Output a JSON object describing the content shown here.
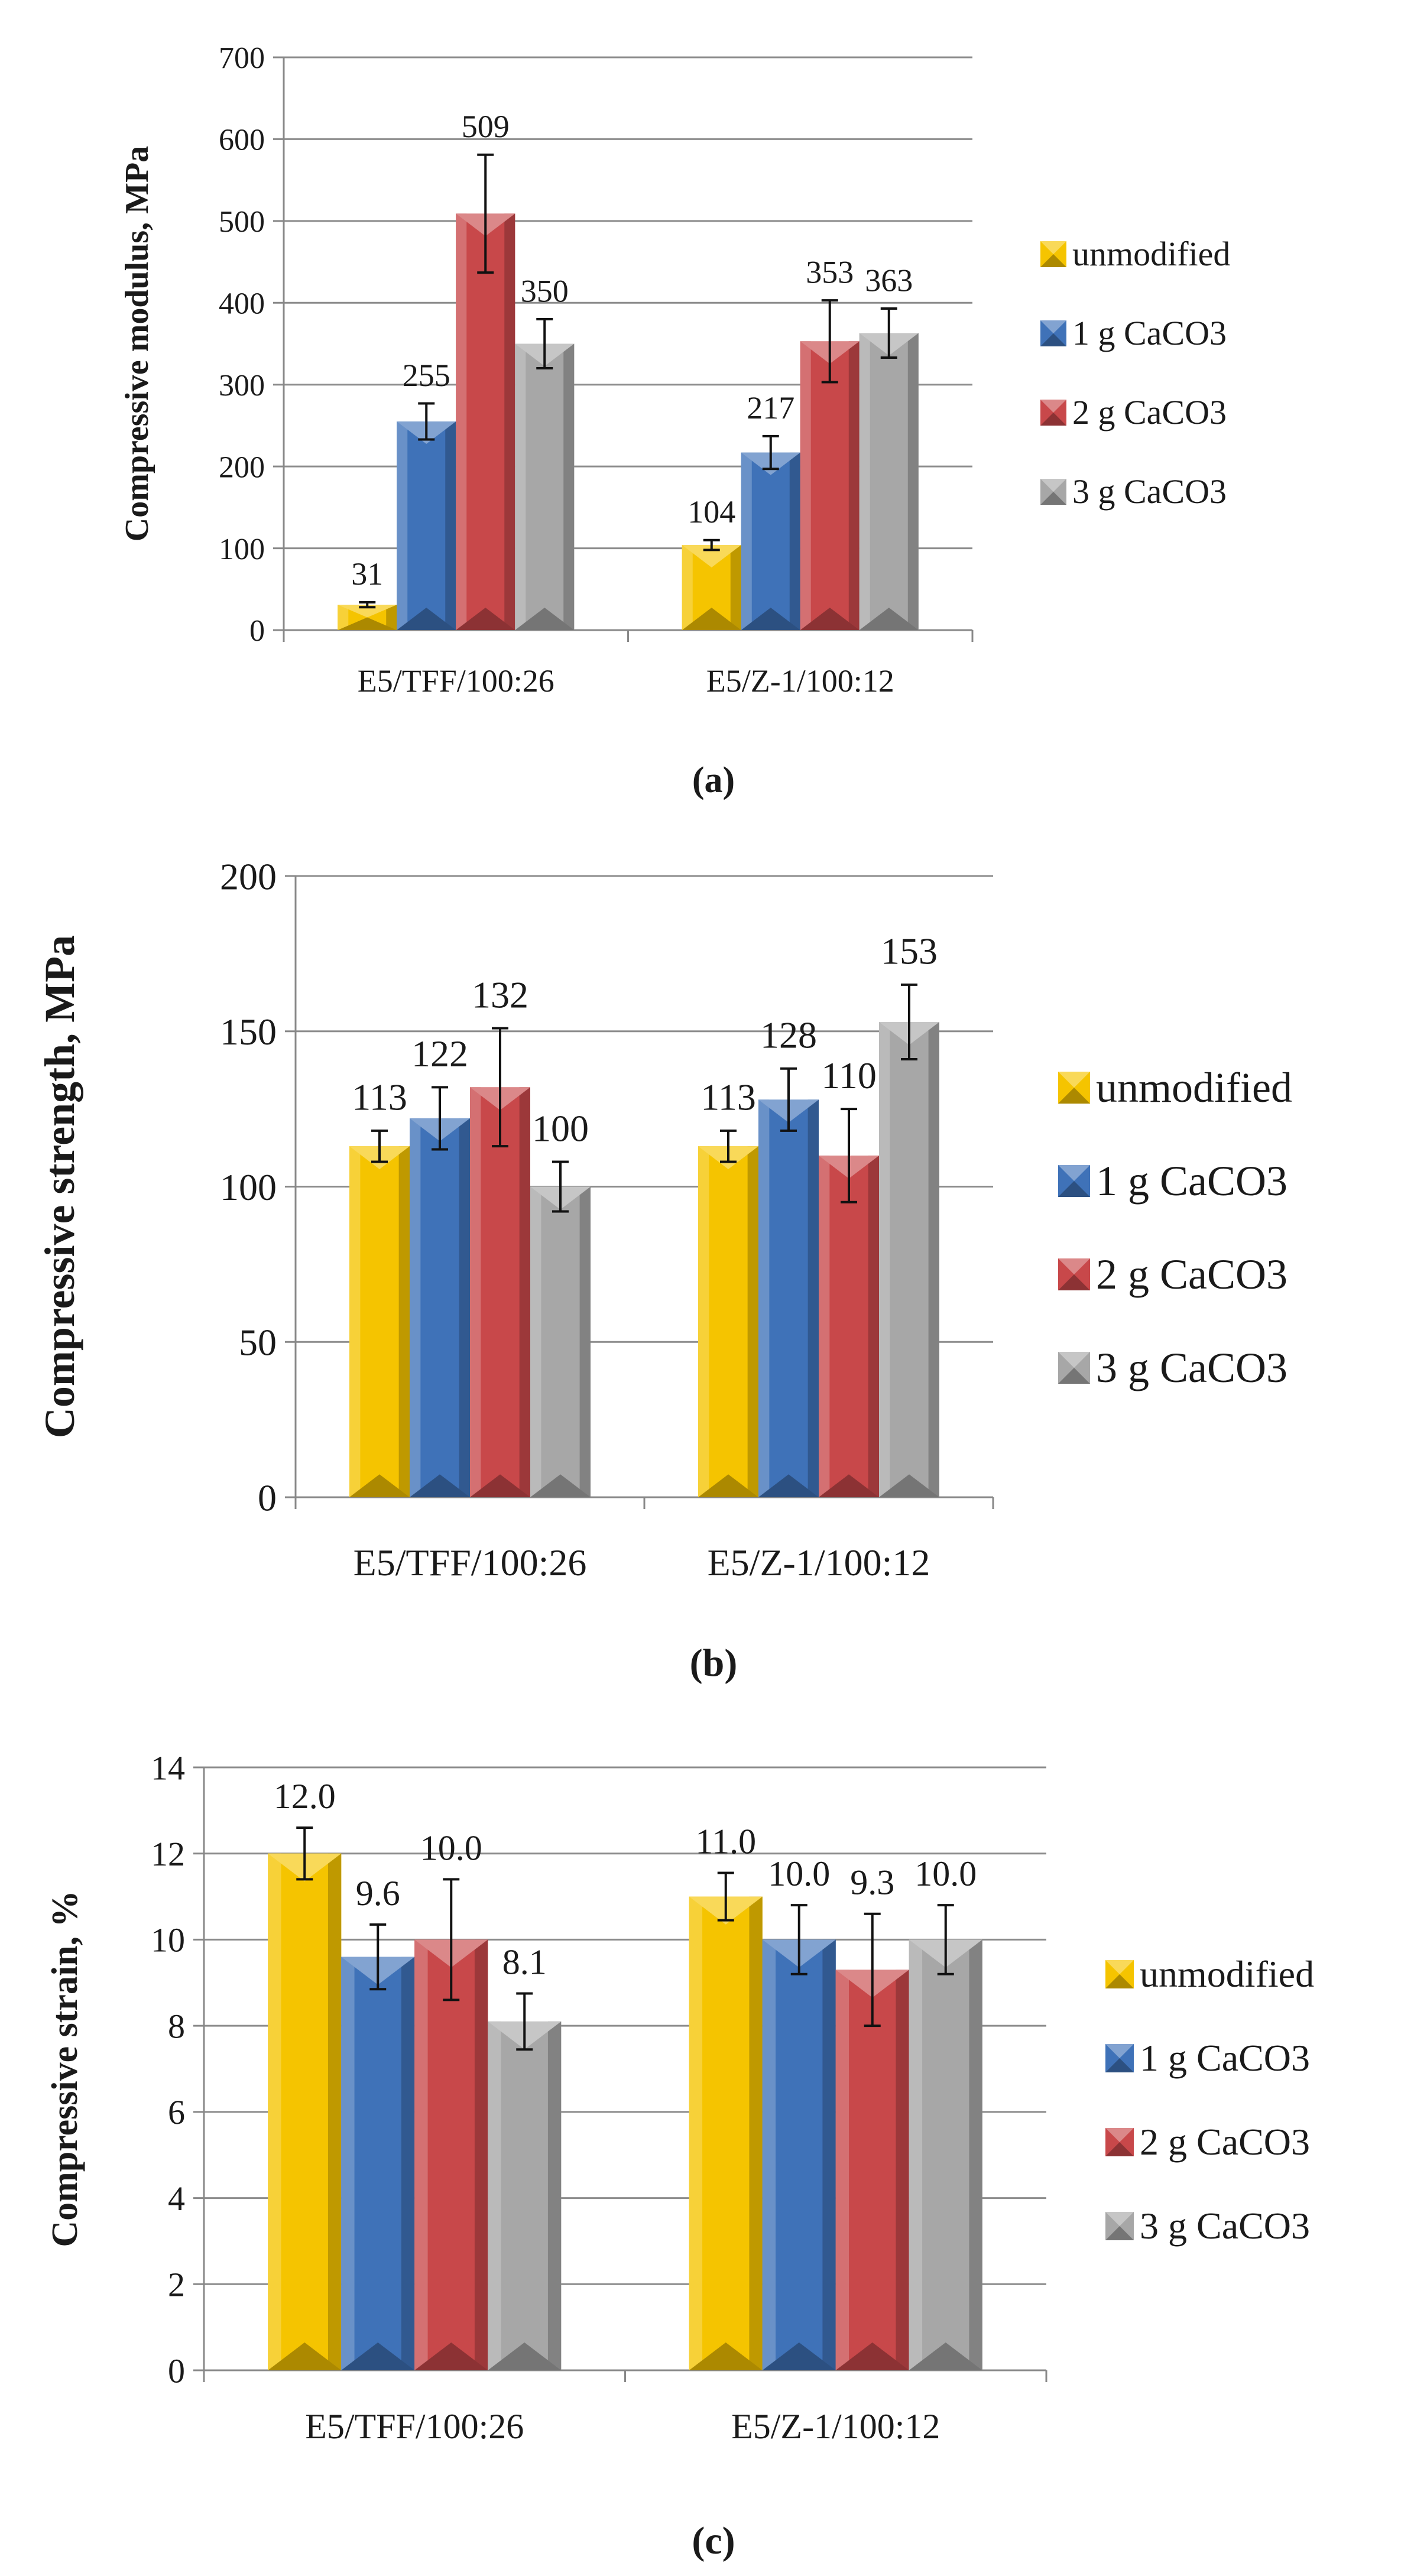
{
  "colors": {
    "unmodified": "#f5c400",
    "unmodified_dark": "#b88a00",
    "caco3_1": "#3f72b8",
    "caco3_1_dark": "#234a80",
    "caco3_2": "#c8484a",
    "caco3_2_dark": "#8c2426",
    "caco3_3": "#a7a7a7",
    "caco3_3_dark": "#6d6d6d",
    "axis": "#888888",
    "grid": "#8c8c8c"
  },
  "chart_data": [
    {
      "type": "bar",
      "panel_label": "(a)",
      "title": "",
      "xlabel": "",
      "ylabel": "Compressive modulus, MPa",
      "categories": [
        "E5/TFF/100:26",
        "E5/Z-1/100:12"
      ],
      "ylim": [
        0,
        700
      ],
      "yticks": [
        0,
        100,
        200,
        300,
        400,
        500,
        600,
        700
      ],
      "series": [
        {
          "name": "unmodified",
          "values": [
            31,
            104
          ],
          "errors": [
            3,
            6
          ],
          "labels": [
            "31",
            "104"
          ]
        },
        {
          "name": "1 g CaCO3",
          "values": [
            255,
            217
          ],
          "errors": [
            22,
            20
          ],
          "labels": [
            "255",
            "217"
          ]
        },
        {
          "name": "2 g CaCO3",
          "values": [
            509,
            353
          ],
          "errors": [
            72,
            50
          ],
          "labels": [
            "509",
            "353"
          ]
        },
        {
          "name": "3 g CaCO3",
          "values": [
            350,
            363
          ],
          "errors": [
            30,
            30
          ],
          "labels": [
            "350",
            "363"
          ]
        }
      ],
      "legend": "right"
    },
    {
      "type": "bar",
      "panel_label": "(b)",
      "title": "",
      "xlabel": "",
      "ylabel": "Compressive strength, MPa",
      "categories": [
        "E5/TFF/100:26",
        "E5/Z-1/100:12"
      ],
      "ylim": [
        0,
        200
      ],
      "yticks": [
        0,
        50,
        100,
        150,
        200
      ],
      "series": [
        {
          "name": "unmodified",
          "values": [
            113,
            113
          ],
          "errors": [
            5,
            5
          ],
          "labels": [
            "113",
            "113"
          ]
        },
        {
          "name": "1 g CaCO3",
          "values": [
            122,
            128
          ],
          "errors": [
            10,
            10
          ],
          "labels": [
            "122",
            "128"
          ]
        },
        {
          "name": "2 g CaCO3",
          "values": [
            132,
            110
          ],
          "errors": [
            19,
            15
          ],
          "labels": [
            "132",
            "110"
          ]
        },
        {
          "name": "3 g CaCO3",
          "values": [
            100,
            153
          ],
          "errors": [
            8,
            12
          ],
          "labels": [
            "100",
            "153"
          ]
        }
      ],
      "legend": "right"
    },
    {
      "type": "bar",
      "panel_label": "(c)",
      "title": "",
      "xlabel": "",
      "ylabel": "Compressive strain, %",
      "categories": [
        "E5/TFF/100:26",
        "E5/Z-1/100:12"
      ],
      "ylim": [
        0,
        14
      ],
      "yticks": [
        0,
        2,
        4,
        6,
        8,
        10,
        12,
        14
      ],
      "series": [
        {
          "name": "unmodified",
          "values": [
            12.0,
            11.0
          ],
          "errors": [
            0.6,
            0.55
          ],
          "labels": [
            "12.0",
            "11.0"
          ]
        },
        {
          "name": "1 g CaCO3",
          "values": [
            9.6,
            10.0
          ],
          "errors": [
            0.75,
            0.8
          ],
          "labels": [
            "9.6",
            "10.0"
          ]
        },
        {
          "name": "2 g CaCO3",
          "values": [
            10.0,
            9.3
          ],
          "errors": [
            1.4,
            1.3
          ],
          "labels": [
            "10.0",
            "9.3"
          ]
        },
        {
          "name": "3 g CaCO3",
          "values": [
            8.1,
            10.0
          ],
          "errors": [
            0.65,
            0.8
          ],
          "labels": [
            "8.1",
            "10.0"
          ]
        }
      ],
      "legend": "right"
    }
  ]
}
